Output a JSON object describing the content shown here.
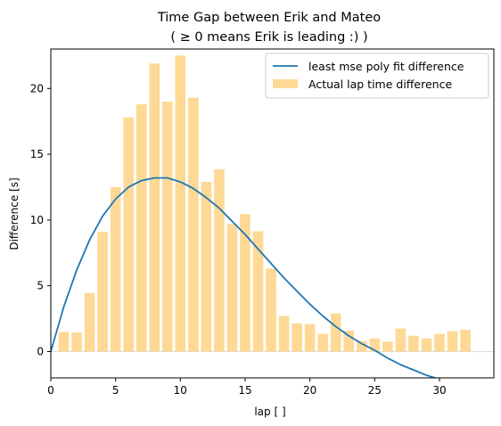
{
  "chart_data": {
    "type": "bar",
    "title": "Time Gap between Erik and Mateo",
    "subtitle": "( ≥ 0 means Erik is leading :) )",
    "xlabel": "lap [ ]",
    "ylabel": "Difference [s]",
    "xlim": [
      0,
      34.2
    ],
    "ylim": [
      -2.0,
      23.0
    ],
    "xticks": [
      0,
      5,
      10,
      15,
      20,
      25,
      30
    ],
    "yticks": [
      0,
      5,
      10,
      15,
      20
    ],
    "grid": false,
    "legend_position": "top-right",
    "bars": {
      "name": "Actual lap time difference",
      "color": "#fdd995",
      "x": [
        1,
        2,
        3,
        4,
        5,
        6,
        7,
        8,
        9,
        10,
        11,
        12,
        13,
        14,
        15,
        16,
        17,
        18,
        19,
        20,
        21,
        22,
        23,
        24,
        25,
        26,
        27,
        28,
        29,
        30,
        31,
        32
      ],
      "values": [
        1.5,
        1.45,
        4.45,
        9.1,
        12.5,
        17.8,
        18.8,
        21.9,
        19.0,
        22.5,
        19.3,
        12.9,
        13.85,
        9.7,
        10.45,
        9.15,
        6.3,
        2.7,
        2.15,
        2.1,
        1.35,
        2.9,
        1.6,
        0.8,
        1.0,
        0.75,
        1.75,
        1.2,
        1.0,
        1.35,
        1.55,
        1.65
      ]
    },
    "line": {
      "name": "least mse poly fit difference",
      "color": "#1f77b4",
      "x": [
        0,
        1,
        2,
        3,
        4,
        5,
        6,
        7,
        8,
        9,
        10,
        11,
        12,
        13,
        14,
        15,
        16,
        17,
        18,
        19,
        20,
        21,
        22,
        23,
        24,
        25,
        26,
        27,
        28,
        29,
        30,
        31,
        32
      ],
      "values": [
        0.0,
        3.4,
        6.2,
        8.5,
        10.3,
        11.6,
        12.5,
        13.0,
        13.2,
        13.2,
        12.9,
        12.4,
        11.7,
        10.9,
        9.9,
        8.9,
        7.8,
        6.7,
        5.6,
        4.6,
        3.6,
        2.7,
        1.9,
        1.2,
        0.6,
        0.1,
        -0.5,
        -1.0,
        -1.4,
        -1.8,
        -2.1,
        -2.4,
        -2.6
      ]
    }
  }
}
